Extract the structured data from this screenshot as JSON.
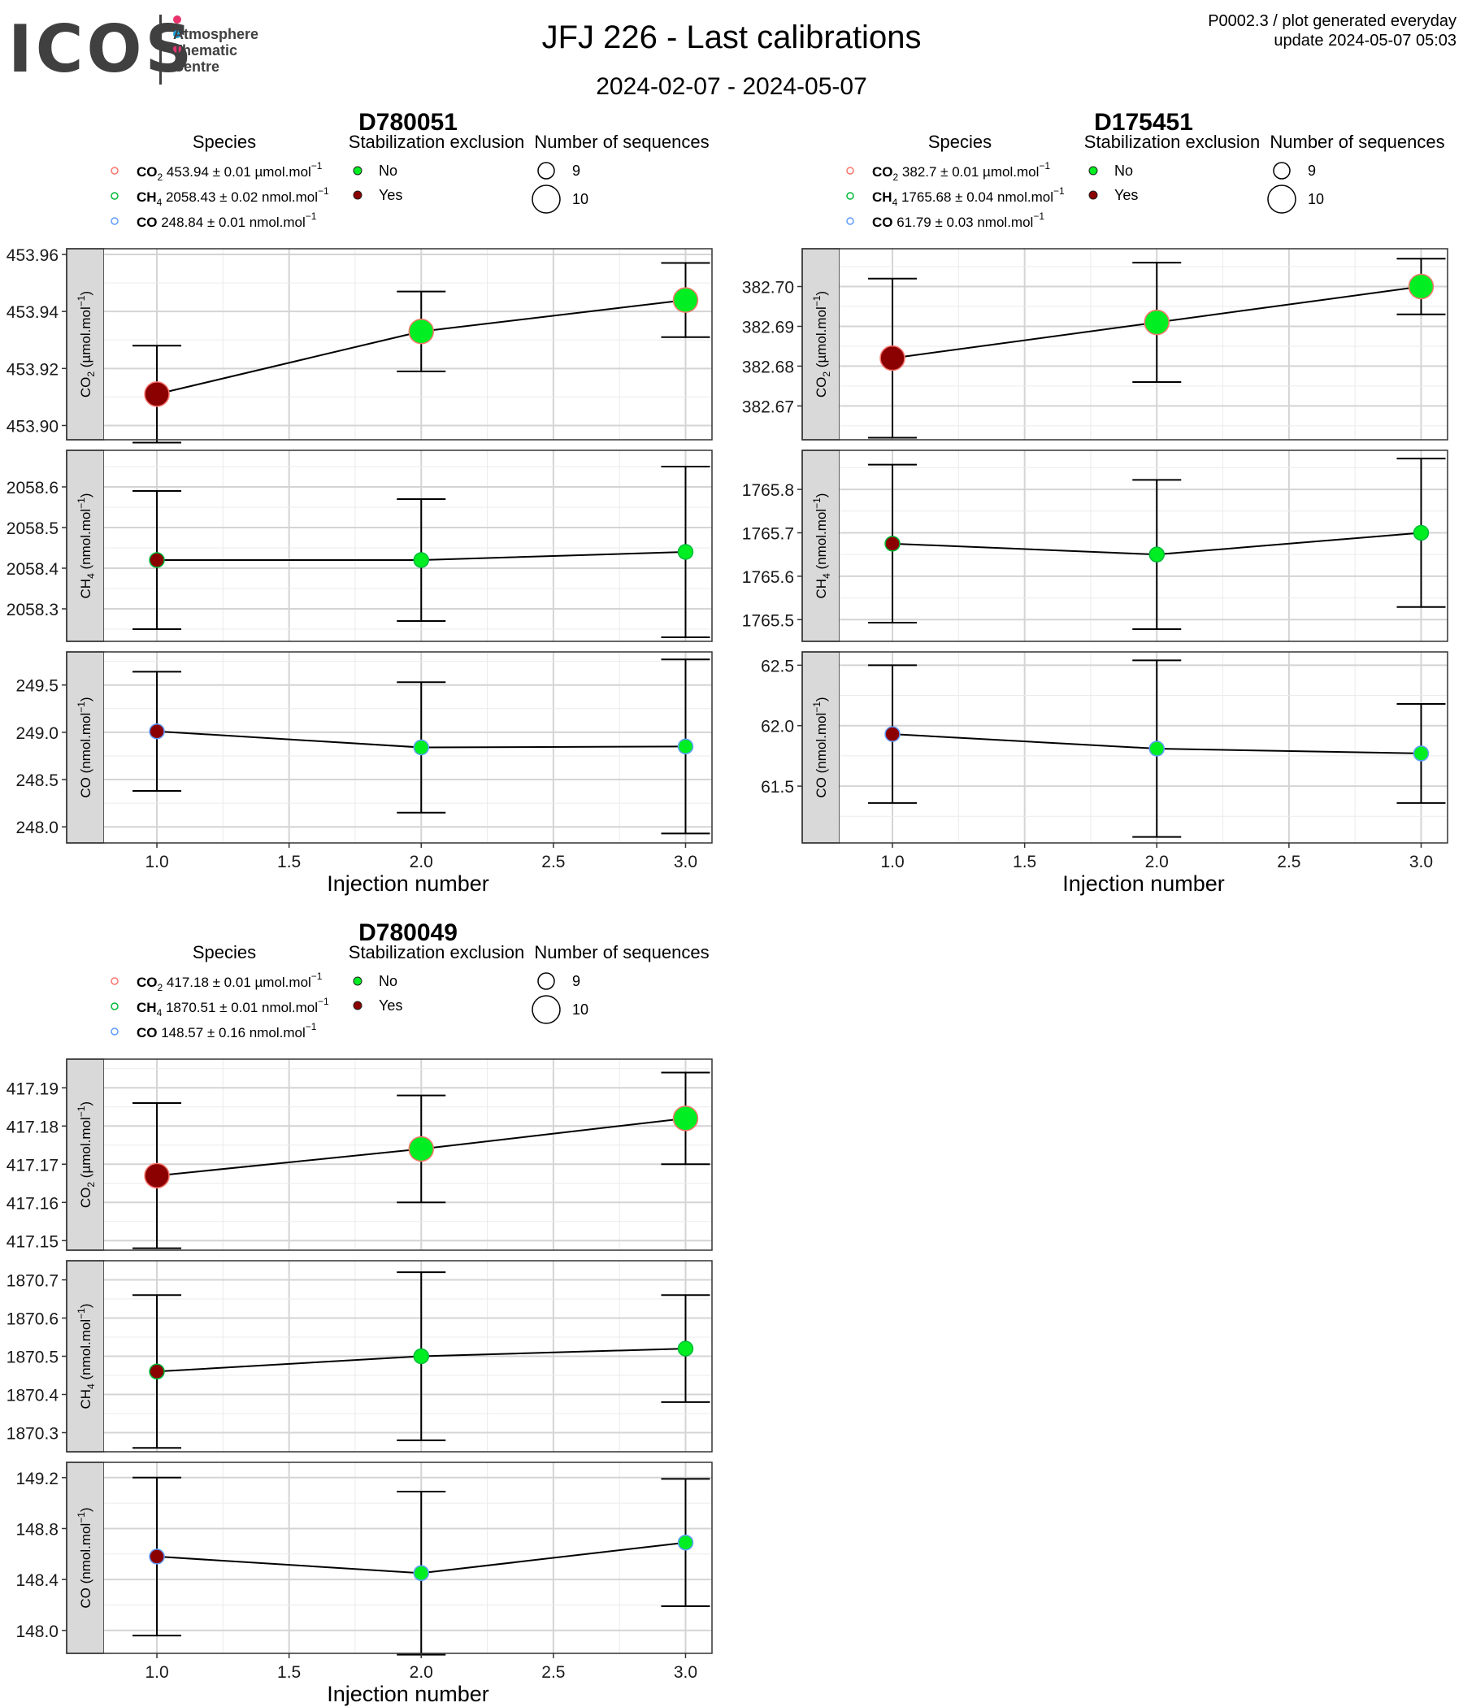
{
  "header": {
    "logo_text": "ICOS",
    "logo_sub": [
      "Atmosphere",
      "Thematic",
      "Centre"
    ],
    "logo_dot_colors": [
      "#e8336d",
      "#1aa3dd",
      "#e8336d"
    ],
    "title": "JFJ 226 - Last calibrations",
    "subtitle": "2024-02-07 - 2024-05-07",
    "meta_line1": "P0002.3 / plot generated everyday",
    "meta_line2": "update  2024-05-07 05:03"
  },
  "colors": {
    "no": "#00ee22",
    "yes": "#8b0000",
    "co2_ring": "#f8766d",
    "ch4_ring": "#00ba38",
    "co_ring": "#619cff",
    "strip": "#d9d9d9"
  },
  "legend_titles": {
    "species": "Species",
    "stabilization": "Stabilization exclusion",
    "sequences": "Number of sequences"
  },
  "legend_labels": {
    "no": "No",
    "yes": "Yes",
    "seq_small": "9",
    "seq_large": "10"
  },
  "chart_data": [
    {
      "type": "scatter",
      "title": "D780051",
      "xlabel": "Injection number",
      "xlim": [
        0.8,
        3.1
      ],
      "xticks": [
        "1.0",
        "1.5",
        "2.0",
        "2.5",
        "3.0"
      ],
      "species_legend": [
        {
          "name": "CO",
          "sub": "2",
          "value": "453.94 ± 0.01 µmol.mol",
          "unit_exp": "−1"
        },
        {
          "name": "CH",
          "sub": "4",
          "value": "2058.43 ± 0.02 nmol.mol",
          "unit_exp": "−1"
        },
        {
          "name": "CO",
          "sub": "",
          "value": "248.84 ± 0.01 nmol.mol",
          "unit_exp": "−1"
        }
      ],
      "panels": [
        {
          "species": "co2",
          "strip_label": "CO2 (µmol.mol-1)",
          "ylim": [
            453.895,
            453.962
          ],
          "yticks": [
            "453.90",
            "453.92",
            "453.94",
            "453.96"
          ],
          "points": [
            {
              "x": 1,
              "y": 453.911,
              "err": 0.017,
              "excluded": "Yes",
              "sequences": 10
            },
            {
              "x": 2,
              "y": 453.933,
              "err": 0.014,
              "excluded": "No",
              "sequences": 10
            },
            {
              "x": 3,
              "y": 453.944,
              "err": 0.013,
              "excluded": "No",
              "sequences": 10
            }
          ]
        },
        {
          "species": "ch4",
          "strip_label": "CH4 (nmol.mol-1)",
          "ylim": [
            2058.22,
            2058.69
          ],
          "yticks": [
            "2058.3",
            "2058.4",
            "2058.5",
            "2058.6"
          ],
          "points": [
            {
              "x": 1,
              "y": 2058.42,
              "err": 0.17,
              "excluded": "Yes",
              "sequences": 9
            },
            {
              "x": 2,
              "y": 2058.42,
              "err": 0.15,
              "excluded": "No",
              "sequences": 9
            },
            {
              "x": 3,
              "y": 2058.44,
              "err": 0.21,
              "excluded": "No",
              "sequences": 9
            }
          ]
        },
        {
          "species": "co",
          "strip_label": "CO (nmol.mol-1)",
          "ylim": [
            247.83,
            249.85
          ],
          "yticks": [
            "248.0",
            "248.5",
            "249.0",
            "249.5"
          ],
          "points": [
            {
              "x": 1,
              "y": 249.01,
              "err": 0.63,
              "excluded": "Yes",
              "sequences": 9
            },
            {
              "x": 2,
              "y": 248.84,
              "err": 0.69,
              "excluded": "No",
              "sequences": 9
            },
            {
              "x": 3,
              "y": 248.85,
              "err": 0.92,
              "excluded": "No",
              "sequences": 9
            }
          ]
        }
      ]
    },
    {
      "type": "scatter",
      "title": "D175451",
      "xlabel": "Injection number",
      "xlim": [
        0.8,
        3.1
      ],
      "xticks": [
        "1.0",
        "1.5",
        "2.0",
        "2.5",
        "3.0"
      ],
      "species_legend": [
        {
          "name": "CO",
          "sub": "2",
          "value": "382.7 ± 0.01 µmol.mol",
          "unit_exp": "−1"
        },
        {
          "name": "CH",
          "sub": "4",
          "value": "1765.68 ± 0.04 nmol.mol",
          "unit_exp": "−1"
        },
        {
          "name": "CO",
          "sub": "",
          "value": "61.79 ± 0.03 nmol.mol",
          "unit_exp": "−1"
        }
      ],
      "panels": [
        {
          "species": "co2",
          "strip_label": "CO2 (µmol.mol-1)",
          "ylim": [
            382.6615,
            382.7095
          ],
          "yticks": [
            "382.67",
            "382.68",
            "382.69",
            "382.70"
          ],
          "points": [
            {
              "x": 1,
              "y": 382.682,
              "err": 0.02,
              "excluded": "Yes",
              "sequences": 10
            },
            {
              "x": 2,
              "y": 382.691,
              "err": 0.015,
              "excluded": "No",
              "sequences": 10
            },
            {
              "x": 3,
              "y": 382.7,
              "err": 0.007,
              "excluded": "No",
              "sequences": 10
            }
          ]
        },
        {
          "species": "ch4",
          "strip_label": "CH4 (nmol.mol-1)",
          "ylim": [
            1765.45,
            1765.89
          ],
          "yticks": [
            "1765.5",
            "1765.6",
            "1765.7",
            "1765.8"
          ],
          "points": [
            {
              "x": 1,
              "y": 1765.675,
              "err": 0.182,
              "excluded": "Yes",
              "sequences": 9
            },
            {
              "x": 2,
              "y": 1765.65,
              "err": 0.172,
              "excluded": "No",
              "sequences": 9
            },
            {
              "x": 3,
              "y": 1765.7,
              "err": 0.171,
              "excluded": "No",
              "sequences": 9
            }
          ]
        },
        {
          "species": "co",
          "strip_label": "CO (nmol.mol-1)",
          "ylim": [
            61.03,
            62.61
          ],
          "yticks": [
            "61.5",
            "62.0",
            "62.5"
          ],
          "points": [
            {
              "x": 1,
              "y": 61.93,
              "err": 0.57,
              "excluded": "Yes",
              "sequences": 9
            },
            {
              "x": 2,
              "y": 61.81,
              "err": 0.73,
              "excluded": "No",
              "sequences": 9
            },
            {
              "x": 3,
              "y": 61.77,
              "err": 0.41,
              "excluded": "No",
              "sequences": 9
            }
          ]
        }
      ]
    },
    {
      "type": "scatter",
      "title": "D780049",
      "xlabel": "Injection number",
      "xlim": [
        0.8,
        3.1
      ],
      "xticks": [
        "1.0",
        "1.5",
        "2.0",
        "2.5",
        "3.0"
      ],
      "species_legend": [
        {
          "name": "CO",
          "sub": "2",
          "value": "417.18 ± 0.01 µmol.mol",
          "unit_exp": "−1"
        },
        {
          "name": "CH",
          "sub": "4",
          "value": "1870.51 ± 0.01 nmol.mol",
          "unit_exp": "−1"
        },
        {
          "name": "CO",
          "sub": "",
          "value": "148.57 ± 0.16 nmol.mol",
          "unit_exp": "−1"
        }
      ],
      "panels": [
        {
          "species": "co2",
          "strip_label": "CO2 (µmol.mol-1)",
          "ylim": [
            417.1475,
            417.1975
          ],
          "yticks": [
            "417.15",
            "417.16",
            "417.17",
            "417.18",
            "417.19"
          ],
          "points": [
            {
              "x": 1,
              "y": 417.167,
              "err": 0.019,
              "excluded": "Yes",
              "sequences": 10
            },
            {
              "x": 2,
              "y": 417.174,
              "err": 0.014,
              "excluded": "No",
              "sequences": 10
            },
            {
              "x": 3,
              "y": 417.182,
              "err": 0.012,
              "excluded": "No",
              "sequences": 10
            }
          ]
        },
        {
          "species": "ch4",
          "strip_label": "CH4 (nmol.mol-1)",
          "ylim": [
            1870.25,
            1870.75
          ],
          "yticks": [
            "1870.3",
            "1870.4",
            "1870.5",
            "1870.6",
            "1870.7"
          ],
          "points": [
            {
              "x": 1,
              "y": 1870.46,
              "err": 0.2,
              "excluded": "Yes",
              "sequences": 9
            },
            {
              "x": 2,
              "y": 1870.5,
              "err": 0.22,
              "excluded": "No",
              "sequences": 9
            },
            {
              "x": 3,
              "y": 1870.52,
              "err": 0.14,
              "excluded": "No",
              "sequences": 9
            }
          ]
        },
        {
          "species": "co",
          "strip_label": "CO (nmol.mol-1)",
          "ylim": [
            147.82,
            149.32
          ],
          "yticks": [
            "148.0",
            "148.4",
            "148.8",
            "149.2"
          ],
          "points": [
            {
              "x": 1,
              "y": 148.58,
              "err": 0.62,
              "excluded": "Yes",
              "sequences": 9
            },
            {
              "x": 2,
              "y": 148.45,
              "err": 0.64,
              "excluded": "No",
              "sequences": 9
            },
            {
              "x": 3,
              "y": 148.69,
              "err": 0.5,
              "excluded": "No",
              "sequences": 9
            }
          ]
        }
      ]
    }
  ]
}
